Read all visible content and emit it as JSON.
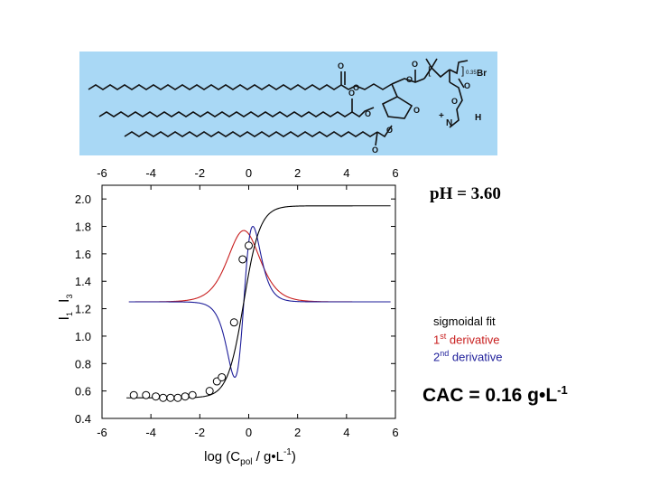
{
  "structure_labels": {
    "bromine": "Br",
    "nitrogen": "N",
    "hydrogen": "H",
    "plus": "+",
    "subscript": "0.35"
  },
  "ph_label": "pH = 3.60",
  "legend": {
    "sigmoidal": "sigmoidal fit",
    "first_prefix": "1",
    "first_sup": "st",
    "first_suffix": " derivative",
    "second_prefix": "2",
    "second_sup": "nd",
    "second_suffix": " derivative"
  },
  "cac": {
    "prefix": "CAC = 0.16 g•L",
    "sup": "-1"
  },
  "colors": {
    "structure_bg": "#a9d8f5",
    "sigmoid": "#000000",
    "first_derivative": "#c81e1e",
    "second_derivative": "#1e1e9a"
  },
  "chart_data": {
    "type": "scatter",
    "xlabel": "log (C_pol / g•L^-1)",
    "ylabel": "I1/I3",
    "xlim": [
      -6,
      6
    ],
    "ylim": [
      0.4,
      2.1
    ],
    "xticks": [
      -6,
      -4,
      -2,
      0,
      2,
      4,
      6
    ],
    "xtick_labels": [
      "-6",
      "-4",
      "-2",
      "0",
      "2",
      "4",
      "6"
    ],
    "yticks": [
      0.4,
      0.6,
      0.8,
      1.0,
      1.2,
      1.4,
      1.6,
      1.8,
      2.0
    ],
    "ytick_labels": [
      "0.4",
      "0.6",
      "0.8",
      "1.0",
      "1.2",
      "1.4",
      "1.6",
      "1.8",
      "2.0"
    ],
    "points": {
      "x": [
        -4.7,
        -4.2,
        -3.8,
        -3.5,
        -3.2,
        -2.9,
        -2.6,
        -2.3,
        -1.6,
        -1.3,
        -1.1,
        -0.6,
        -0.25,
        0.0
      ],
      "y": [
        0.57,
        0.57,
        0.56,
        0.55,
        0.55,
        0.55,
        0.56,
        0.57,
        0.6,
        0.67,
        0.7,
        1.1,
        1.56,
        1.66
      ]
    },
    "sigmoid_fit": {
      "low": 0.55,
      "high": 1.95,
      "center": -0.2,
      "width": 0.33
    },
    "series": [
      {
        "name": "sigmoidal fit"
      },
      {
        "name": "1st derivative"
      },
      {
        "name": "2nd derivative"
      }
    ],
    "derivative_baseline": 1.25,
    "first_derivative_peak": 1.77,
    "second_derivative_extreme": 0.7
  }
}
